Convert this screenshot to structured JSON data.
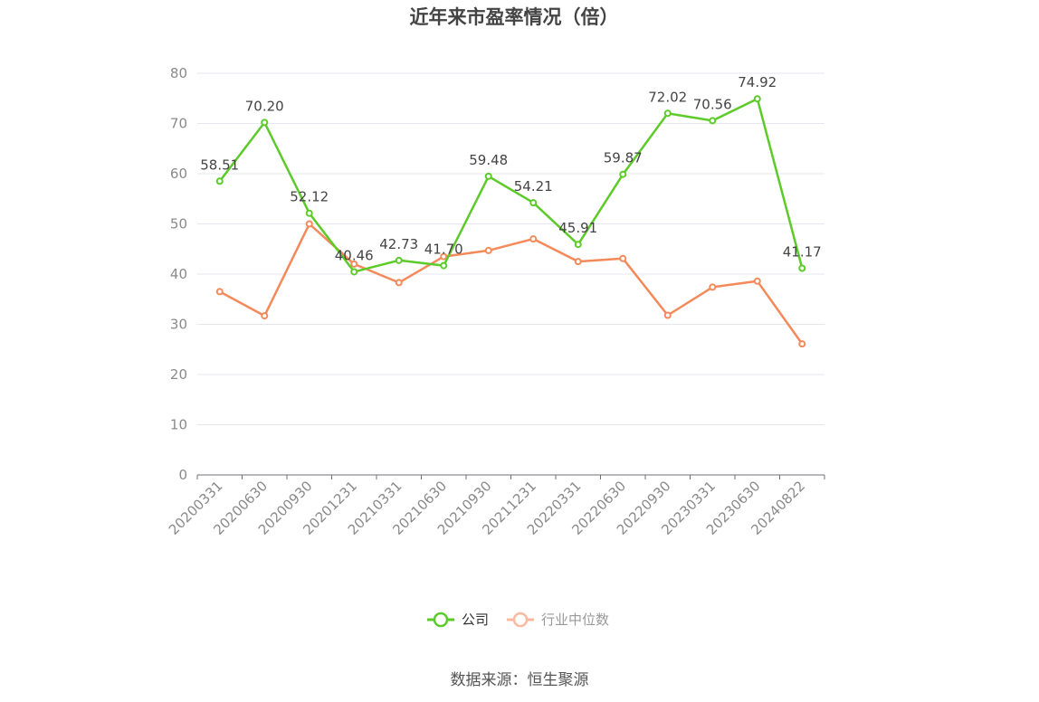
{
  "chart_data": {
    "type": "line",
    "title": "近年来市盈率情况（倍）",
    "categories": [
      "20200331",
      "20200630",
      "20200930",
      "20201231",
      "20210331",
      "20210630",
      "20210930",
      "20211231",
      "20220331",
      "20220630",
      "20220930",
      "20230331",
      "20230630",
      "20240822"
    ],
    "series": [
      {
        "name": "公司",
        "color": "#5ccb2a",
        "values": [
          58.51,
          70.2,
          52.12,
          40.46,
          42.73,
          41.7,
          59.48,
          54.21,
          45.91,
          59.87,
          72.02,
          70.56,
          74.92,
          41.17
        ],
        "labels": [
          "58.51",
          "70.20",
          "52.12",
          "40.46",
          "42.73",
          "41.70",
          "59.48",
          "54.21",
          "45.91",
          "59.87",
          "72.02",
          "70.56",
          "74.92",
          "41.17"
        ]
      },
      {
        "name": "行业中位数",
        "color": "#f4895a",
        "legend_color": "#f8b9a0",
        "values": [
          36.5,
          31.7,
          50.0,
          42.0,
          38.3,
          43.5,
          44.7,
          47.0,
          42.5,
          43.1,
          31.8,
          37.4,
          38.6,
          26.1
        ]
      }
    ],
    "yticks": [
      "0",
      "10",
      "20",
      "30",
      "40",
      "50",
      "60",
      "70",
      "80"
    ],
    "ylim": [
      0,
      80
    ],
    "grid": true,
    "legend_position": "bottom"
  },
  "source": "数据来源：恒生聚源"
}
